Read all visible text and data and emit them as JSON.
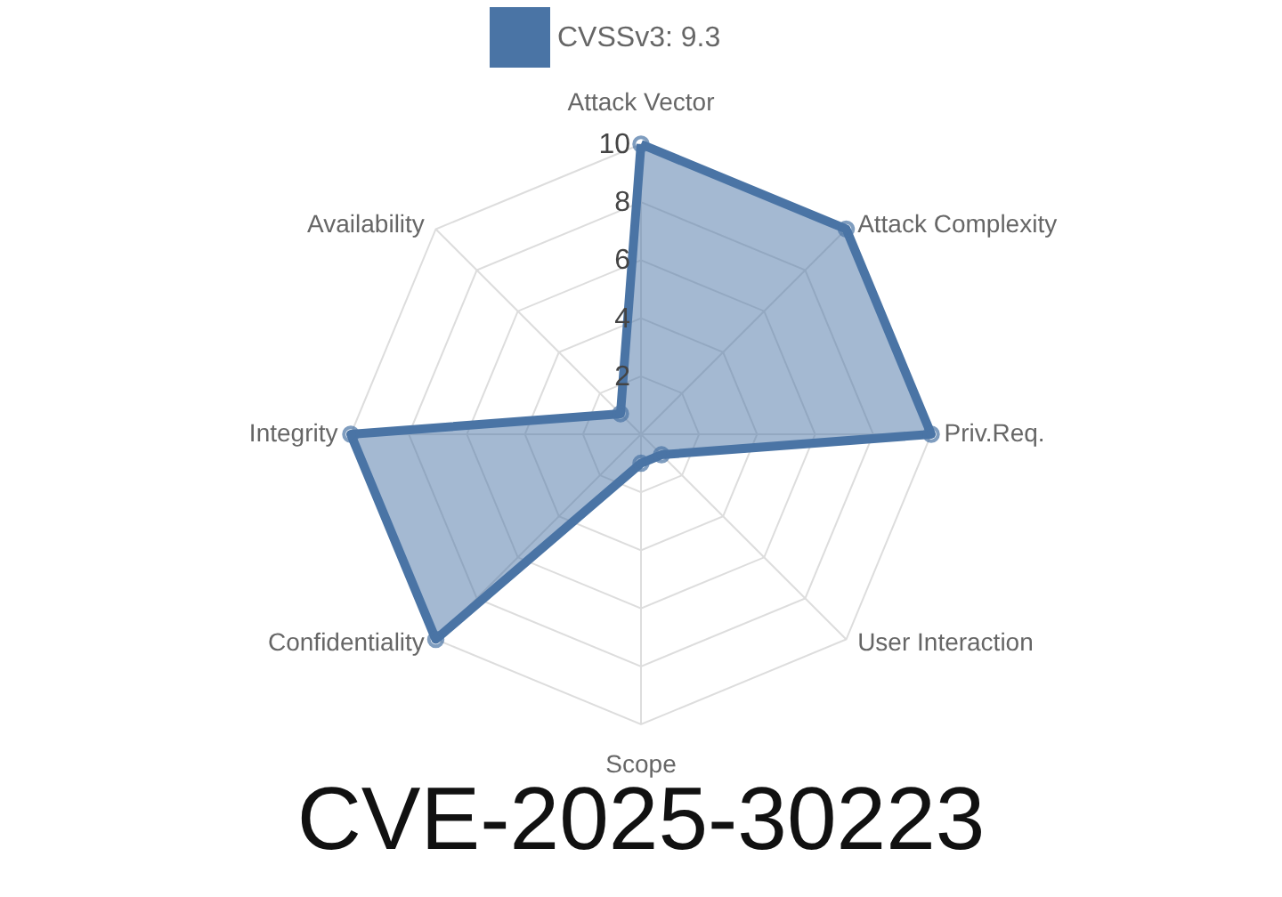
{
  "chart_data": {
    "type": "radar",
    "title": "CVE-2025-30223",
    "categories": [
      "Attack Vector",
      "Attack Complexity",
      "Priv.Req.",
      "User Interaction",
      "Scope",
      "Confidentiality",
      "Integrity",
      "Availability"
    ],
    "series": [
      {
        "name": "CVSSv3: 9.3",
        "color": "#4a74a5",
        "values": [
          10,
          10,
          10,
          1,
          1,
          10,
          10,
          1
        ]
      }
    ],
    "ylim": [
      0,
      10
    ],
    "yticks": [
      2,
      4,
      6,
      8,
      10
    ],
    "grid": true,
    "legend": "top",
    "marker": "circle"
  }
}
